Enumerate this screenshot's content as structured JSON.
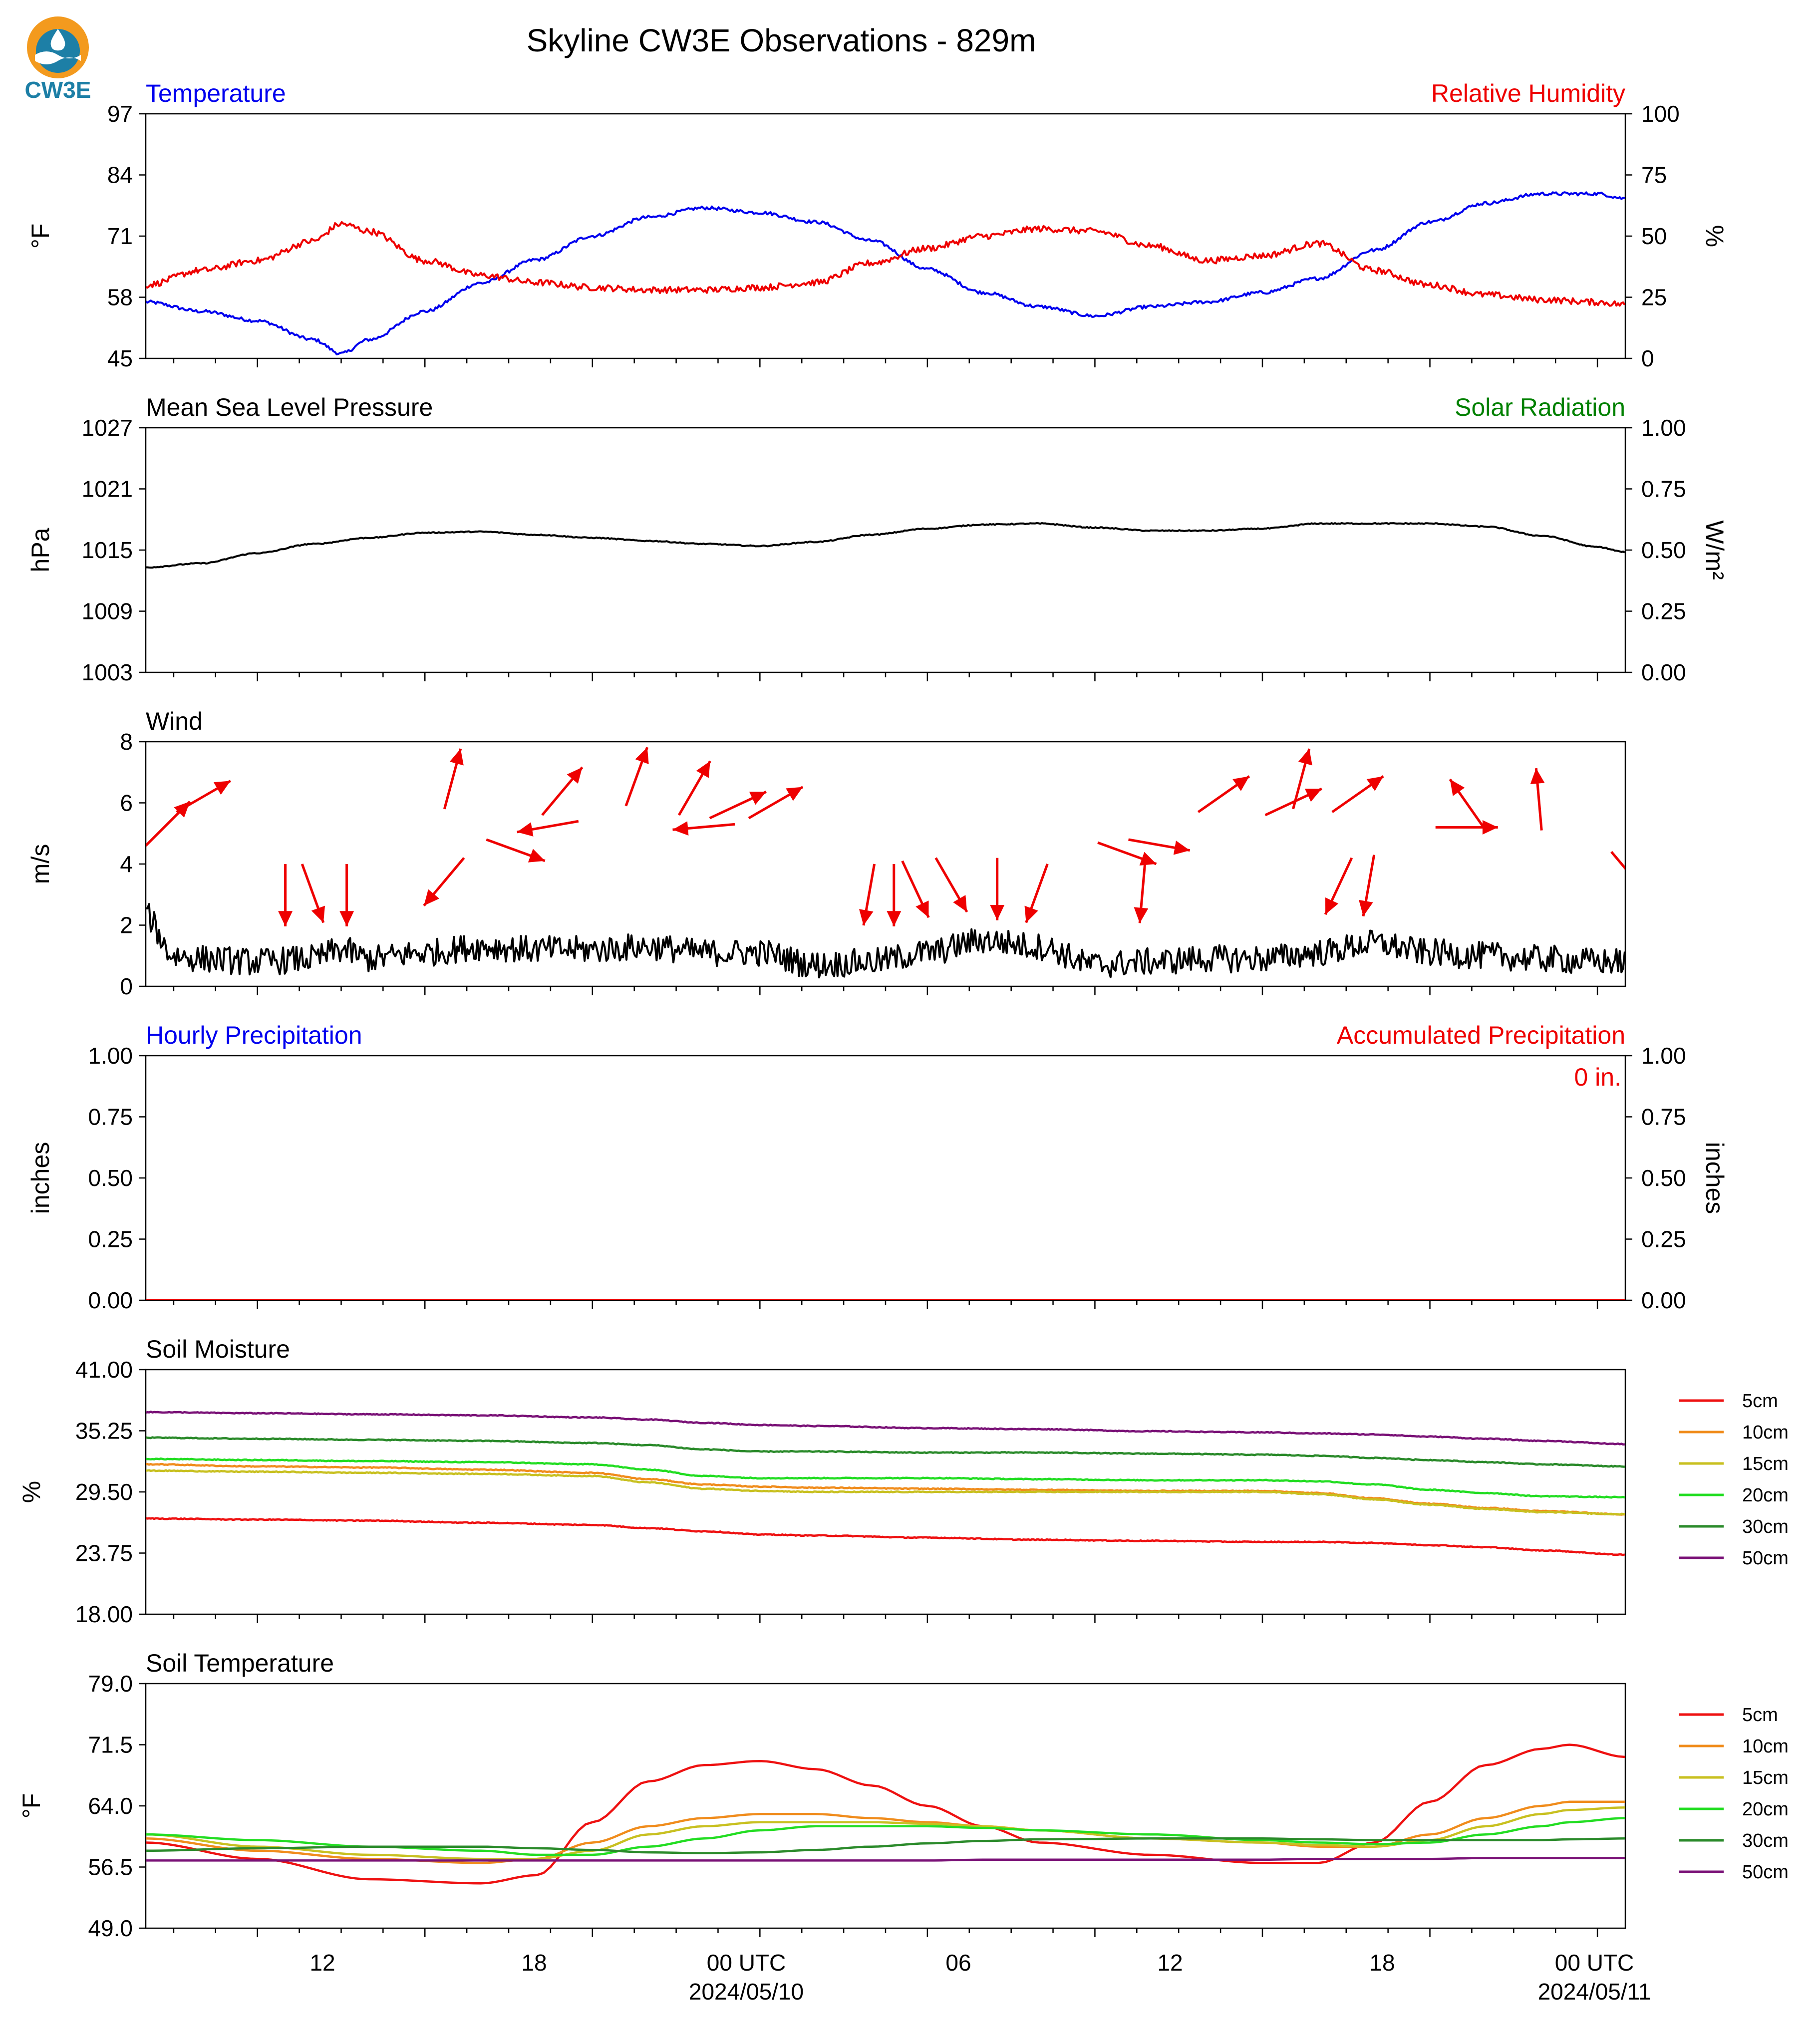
{
  "page": {
    "title": "Skyline CW3E Observations - 829m",
    "logo_text": "CW3E"
  },
  "time_axis": {
    "tick_labels": [
      "12",
      "18",
      "00 UTC",
      "06",
      "12",
      "18",
      "00 UTC"
    ],
    "date_labels": [
      "2024/05/10",
      "2024/05/11"
    ]
  },
  "colors": {
    "temperature": "#0000ee",
    "humidity": "#ee0000",
    "pressure": "#000000",
    "solar": "#008000",
    "soil_5cm": "#ee1111",
    "soil_10cm": "#f08c1c",
    "soil_15cm": "#c8c020",
    "soil_20cm": "#22dd22",
    "soil_30cm": "#2a8a2a",
    "soil_50cm": "#7a1277"
  },
  "chart_data": [
    {
      "type": "line",
      "panel": "temperature-humidity",
      "title_left": "Temperature",
      "title_right": "Relative Humidity",
      "ylabel_left": "°F",
      "ylabel_right": "%",
      "ylim_left": [
        45,
        97
      ],
      "ylim_right": [
        0,
        100
      ],
      "yticks_left": [
        "97",
        "84",
        "71",
        "58",
        "45"
      ],
      "yticks_right": [
        "100",
        "75",
        "50",
        "25",
        "0"
      ],
      "x_hours": [
        0,
        2,
        4,
        6,
        7,
        8,
        10,
        12,
        14,
        16,
        18,
        20,
        22,
        24,
        26,
        28,
        30,
        32,
        34,
        36,
        38,
        40,
        42,
        44,
        46,
        48,
        50,
        52,
        53
      ],
      "series": [
        {
          "name": "Temperature",
          "axis": "left",
          "values": [
            57,
            55,
            53,
            49,
            46,
            49,
            55,
            61,
            66,
            71,
            75,
            77,
            76,
            74,
            70,
            64,
            59,
            56,
            54,
            56,
            57,
            59,
            62,
            68,
            74,
            78,
            80,
            80,
            79
          ]
        },
        {
          "name": "Relative Humidity",
          "axis": "right",
          "values": [
            30,
            36,
            40,
            48,
            55,
            52,
            40,
            34,
            31,
            29,
            28,
            28,
            29,
            31,
            39,
            45,
            50,
            53,
            52,
            46,
            40,
            42,
            47,
            36,
            30,
            26,
            24,
            23,
            22
          ]
        }
      ]
    },
    {
      "type": "line",
      "panel": "pressure-solar",
      "title_left": "Mean Sea Level Pressure",
      "title_right": "Solar Radiation",
      "ylabel_left": "hPa",
      "ylabel_right": "W/m²",
      "ylim_left": [
        1003,
        1027
      ],
      "ylim_right": [
        0,
        1
      ],
      "yticks_left": [
        "1027",
        "1021",
        "1015",
        "1009",
        "1003"
      ],
      "yticks_right": [
        "1.00",
        "0.75",
        "0.50",
        "0.25",
        "0.00"
      ],
      "x_hours": [
        0,
        2,
        4,
        6,
        8,
        10,
        12,
        14,
        16,
        18,
        20,
        22,
        24,
        26,
        28,
        30,
        32,
        34,
        36,
        38,
        40,
        42,
        44,
        46,
        48,
        50,
        52,
        53
      ],
      "series": [
        {
          "name": "Mean Sea Level Pressure",
          "axis": "left",
          "values": [
            1013.3,
            1013.7,
            1014.7,
            1015.6,
            1016.2,
            1016.7,
            1016.8,
            1016.5,
            1016.2,
            1015.9,
            1015.6,
            1015.4,
            1015.8,
            1016.5,
            1017.1,
            1017.5,
            1017.6,
            1017.2,
            1016.9,
            1016.9,
            1017.1,
            1017.6,
            1017.6,
            1017.6,
            1017.3,
            1016.4,
            1015.3,
            1014.8
          ]
        }
      ]
    },
    {
      "type": "line",
      "panel": "wind",
      "title_left": "Wind",
      "ylabel_left": "m/s",
      "ylim_left": [
        0,
        8
      ],
      "yticks_left": [
        "8",
        "6",
        "4",
        "2",
        "0"
      ],
      "x_hours": [
        0,
        1,
        2,
        4,
        6,
        7,
        8,
        10,
        12,
        14,
        16,
        18,
        20,
        22,
        24,
        26,
        28,
        30,
        32,
        34,
        36,
        38,
        40,
        42,
        44,
        46,
        48,
        50,
        52,
        53
      ],
      "series": [
        {
          "name": "Wind Speed",
          "axis": "left",
          "values": [
            2.3,
            1.0,
            0.9,
            0.8,
            0.9,
            1.2,
            0.9,
            1.1,
            1.3,
            1.2,
            1.2,
            1.3,
            1.1,
            1.1,
            0.7,
            0.8,
            1.1,
            1.5,
            1.3,
            0.7,
            0.8,
            0.9,
            0.9,
            1.1,
            1.4,
            1.1,
            1.0,
            0.9,
            0.8,
            0.8
          ]
        }
      ],
      "barbs": [
        {
          "h": 0.0,
          "speed": 4.6,
          "dir": 225
        },
        {
          "h": 1.1,
          "speed": 5.7,
          "dir": 240
        },
        {
          "h": 5.0,
          "speed": 4.0,
          "dir": 0
        },
        {
          "h": 5.6,
          "speed": 4.0,
          "dir": 340
        },
        {
          "h": 7.2,
          "speed": 4.0,
          "dir": 0
        },
        {
          "h": 10.7,
          "speed": 5.8,
          "dir": 195
        },
        {
          "h": 11.4,
          "speed": 4.2,
          "dir": 40
        },
        {
          "h": 12.2,
          "speed": 4.8,
          "dir": 290
        },
        {
          "h": 14.2,
          "speed": 5.6,
          "dir": 220
        },
        {
          "h": 15.5,
          "speed": 5.4,
          "dir": 80
        },
        {
          "h": 17.2,
          "speed": 5.9,
          "dir": 200
        },
        {
          "h": 19.1,
          "speed": 5.6,
          "dir": 210
        },
        {
          "h": 20.2,
          "speed": 5.5,
          "dir": 245
        },
        {
          "h": 21.1,
          "speed": 5.3,
          "dir": 85
        },
        {
          "h": 21.6,
          "speed": 5.5,
          "dir": 240
        },
        {
          "h": 26.1,
          "speed": 4.0,
          "dir": 10
        },
        {
          "h": 26.8,
          "speed": 4.0,
          "dir": 0
        },
        {
          "h": 27.1,
          "speed": 4.1,
          "dir": 335
        },
        {
          "h": 28.3,
          "speed": 4.2,
          "dir": 330
        },
        {
          "h": 30.5,
          "speed": 4.2,
          "dir": 0
        },
        {
          "h": 32.3,
          "speed": 4.0,
          "dir": 20
        },
        {
          "h": 34.1,
          "speed": 4.7,
          "dir": 290
        },
        {
          "h": 35.2,
          "speed": 4.8,
          "dir": 280
        },
        {
          "h": 35.8,
          "speed": 4.1,
          "dir": 5
        },
        {
          "h": 37.7,
          "speed": 5.7,
          "dir": 235
        },
        {
          "h": 40.1,
          "speed": 5.6,
          "dir": 245
        },
        {
          "h": 41.1,
          "speed": 5.8,
          "dir": 195
        },
        {
          "h": 42.5,
          "speed": 5.7,
          "dir": 235
        },
        {
          "h": 43.2,
          "speed": 4.2,
          "dir": 25
        },
        {
          "h": 44.0,
          "speed": 4.3,
          "dir": 10
        },
        {
          "h": 46.2,
          "speed": 5.2,
          "dir": 270
        },
        {
          "h": 48.0,
          "speed": 5.1,
          "dir": 145
        },
        {
          "h": 50.0,
          "speed": 5.1,
          "dir": 175
        },
        {
          "h": 52.5,
          "speed": 4.4,
          "dir": 320
        }
      ]
    },
    {
      "type": "line",
      "panel": "precipitation",
      "title_left": "Hourly Precipitation",
      "title_right": "Accumulated Precipitation",
      "ylabel_left": "inches",
      "ylabel_right": "inches",
      "ylim_left": [
        0,
        1
      ],
      "ylim_right": [
        0,
        1
      ],
      "yticks_left": [
        "1.00",
        "0.75",
        "0.50",
        "0.25",
        "0.00"
      ],
      "yticks_right": [
        "1.00",
        "0.75",
        "0.50",
        "0.25",
        "0.00"
      ],
      "annotation": "0 in.",
      "x_hours": [
        0,
        53
      ],
      "series": [
        {
          "name": "Hourly Precipitation",
          "axis": "left",
          "values": [
            0,
            0
          ]
        }
      ]
    },
    {
      "type": "line",
      "panel": "soil-moisture",
      "title_left": "Soil Moisture",
      "ylabel_left": "%",
      "ylim_left": [
        18,
        41
      ],
      "yticks_left": [
        "41.00",
        "35.25",
        "29.50",
        "23.75",
        "18.00"
      ],
      "legend": "right",
      "x_hours": [
        0,
        4,
        8,
        12,
        16,
        18,
        20,
        22,
        24,
        28,
        32,
        36,
        40,
        42,
        44,
        46,
        48,
        50,
        53
      ],
      "series": [
        {
          "name": "5cm",
          "color": "#ee1111",
          "values": [
            27.0,
            26.9,
            26.8,
            26.6,
            26.4,
            26.1,
            25.8,
            25.5,
            25.4,
            25.2,
            25.0,
            24.9,
            24.8,
            24.8,
            24.7,
            24.5,
            24.3,
            24.0,
            23.6
          ]
        },
        {
          "name": "10cm",
          "color": "#f08c1c",
          "values": [
            32.1,
            31.9,
            31.8,
            31.6,
            31.3,
            30.7,
            30.2,
            30.0,
            29.9,
            29.8,
            29.7,
            29.6,
            29.6,
            29.4,
            28.9,
            28.4,
            28.0,
            27.7,
            27.4
          ]
        },
        {
          "name": "15cm",
          "color": "#c8c020",
          "values": [
            31.5,
            31.4,
            31.3,
            31.2,
            31.0,
            30.4,
            29.8,
            29.6,
            29.5,
            29.5,
            29.5,
            29.5,
            29.5,
            29.3,
            28.8,
            28.3,
            27.9,
            27.6,
            27.4
          ]
        },
        {
          "name": "20cm",
          "color": "#22dd22",
          "values": [
            32.6,
            32.5,
            32.4,
            32.3,
            32.1,
            31.6,
            31.0,
            30.8,
            30.8,
            30.8,
            30.7,
            30.6,
            30.6,
            30.5,
            30.2,
            29.7,
            29.4,
            29.1,
            29.0
          ]
        },
        {
          "name": "30cm",
          "color": "#2a8a2a",
          "values": [
            34.6,
            34.5,
            34.4,
            34.3,
            34.1,
            33.9,
            33.5,
            33.3,
            33.3,
            33.2,
            33.2,
            33.1,
            33.0,
            32.9,
            32.7,
            32.5,
            32.3,
            32.1,
            31.9
          ]
        },
        {
          "name": "50cm",
          "color": "#7a1277",
          "values": [
            37.0,
            36.9,
            36.8,
            36.7,
            36.5,
            36.3,
            36.0,
            35.8,
            35.7,
            35.5,
            35.4,
            35.2,
            35.1,
            35.0,
            34.9,
            34.7,
            34.5,
            34.3,
            34.0
          ]
        }
      ]
    },
    {
      "type": "line",
      "panel": "soil-temperature",
      "title_left": "Soil Temperature",
      "ylabel_left": "°F",
      "ylim_left": [
        49,
        79
      ],
      "yticks_left": [
        "79.0",
        "71.5",
        "64.0",
        "56.5",
        "49.0"
      ],
      "legend": "right",
      "x_hours": [
        0,
        4,
        8,
        12,
        14,
        16,
        18,
        20,
        22,
        24,
        26,
        28,
        30,
        32,
        36,
        40,
        42,
        44,
        46,
        48,
        50,
        51,
        53
      ],
      "series": [
        {
          "name": "5cm",
          "color": "#ee1111",
          "values": [
            59.5,
            57.5,
            55.0,
            54.5,
            55.5,
            62.0,
            67.0,
            69.0,
            69.5,
            68.5,
            66.5,
            64.0,
            61.5,
            59.5,
            58.0,
            57.0,
            57.0,
            59.5,
            64.5,
            69.0,
            71.0,
            71.5,
            70.0
          ]
        },
        {
          "name": "10cm",
          "color": "#f08c1c",
          "values": [
            60.0,
            58.5,
            57.5,
            57.0,
            57.5,
            59.5,
            61.5,
            62.5,
            63.0,
            63.0,
            62.5,
            62.0,
            61.5,
            61.0,
            60.0,
            59.5,
            59.0,
            59.0,
            60.5,
            62.5,
            64.0,
            64.5,
            64.5
          ]
        },
        {
          "name": "15cm",
          "color": "#c8c020",
          "values": [
            60.5,
            59.0,
            58.0,
            57.5,
            57.5,
            58.5,
            60.5,
            61.5,
            62.0,
            62.0,
            62.0,
            61.8,
            61.5,
            61.0,
            60.0,
            59.5,
            59.2,
            59.0,
            59.8,
            61.5,
            63.0,
            63.5,
            63.8
          ]
        },
        {
          "name": "20cm",
          "color": "#22dd22",
          "values": [
            60.5,
            59.8,
            59.0,
            58.5,
            58.0,
            58.0,
            59.0,
            60.0,
            61.0,
            61.5,
            61.5,
            61.5,
            61.3,
            61.0,
            60.5,
            59.8,
            59.5,
            59.3,
            59.5,
            60.5,
            61.5,
            62.0,
            62.5
          ]
        },
        {
          "name": "30cm",
          "color": "#2a8a2a",
          "values": [
            58.5,
            58.8,
            59.0,
            59.0,
            58.8,
            58.6,
            58.3,
            58.2,
            58.3,
            58.6,
            59.0,
            59.4,
            59.7,
            59.9,
            60.0,
            60.0,
            59.9,
            59.8,
            59.8,
            59.8,
            59.8,
            59.9,
            60.0
          ]
        },
        {
          "name": "50cm",
          "color": "#7a1277",
          "values": [
            57.3,
            57.3,
            57.3,
            57.3,
            57.3,
            57.3,
            57.3,
            57.3,
            57.3,
            57.3,
            57.3,
            57.3,
            57.4,
            57.4,
            57.4,
            57.4,
            57.5,
            57.5,
            57.5,
            57.6,
            57.6,
            57.6,
            57.6
          ]
        }
      ]
    }
  ]
}
